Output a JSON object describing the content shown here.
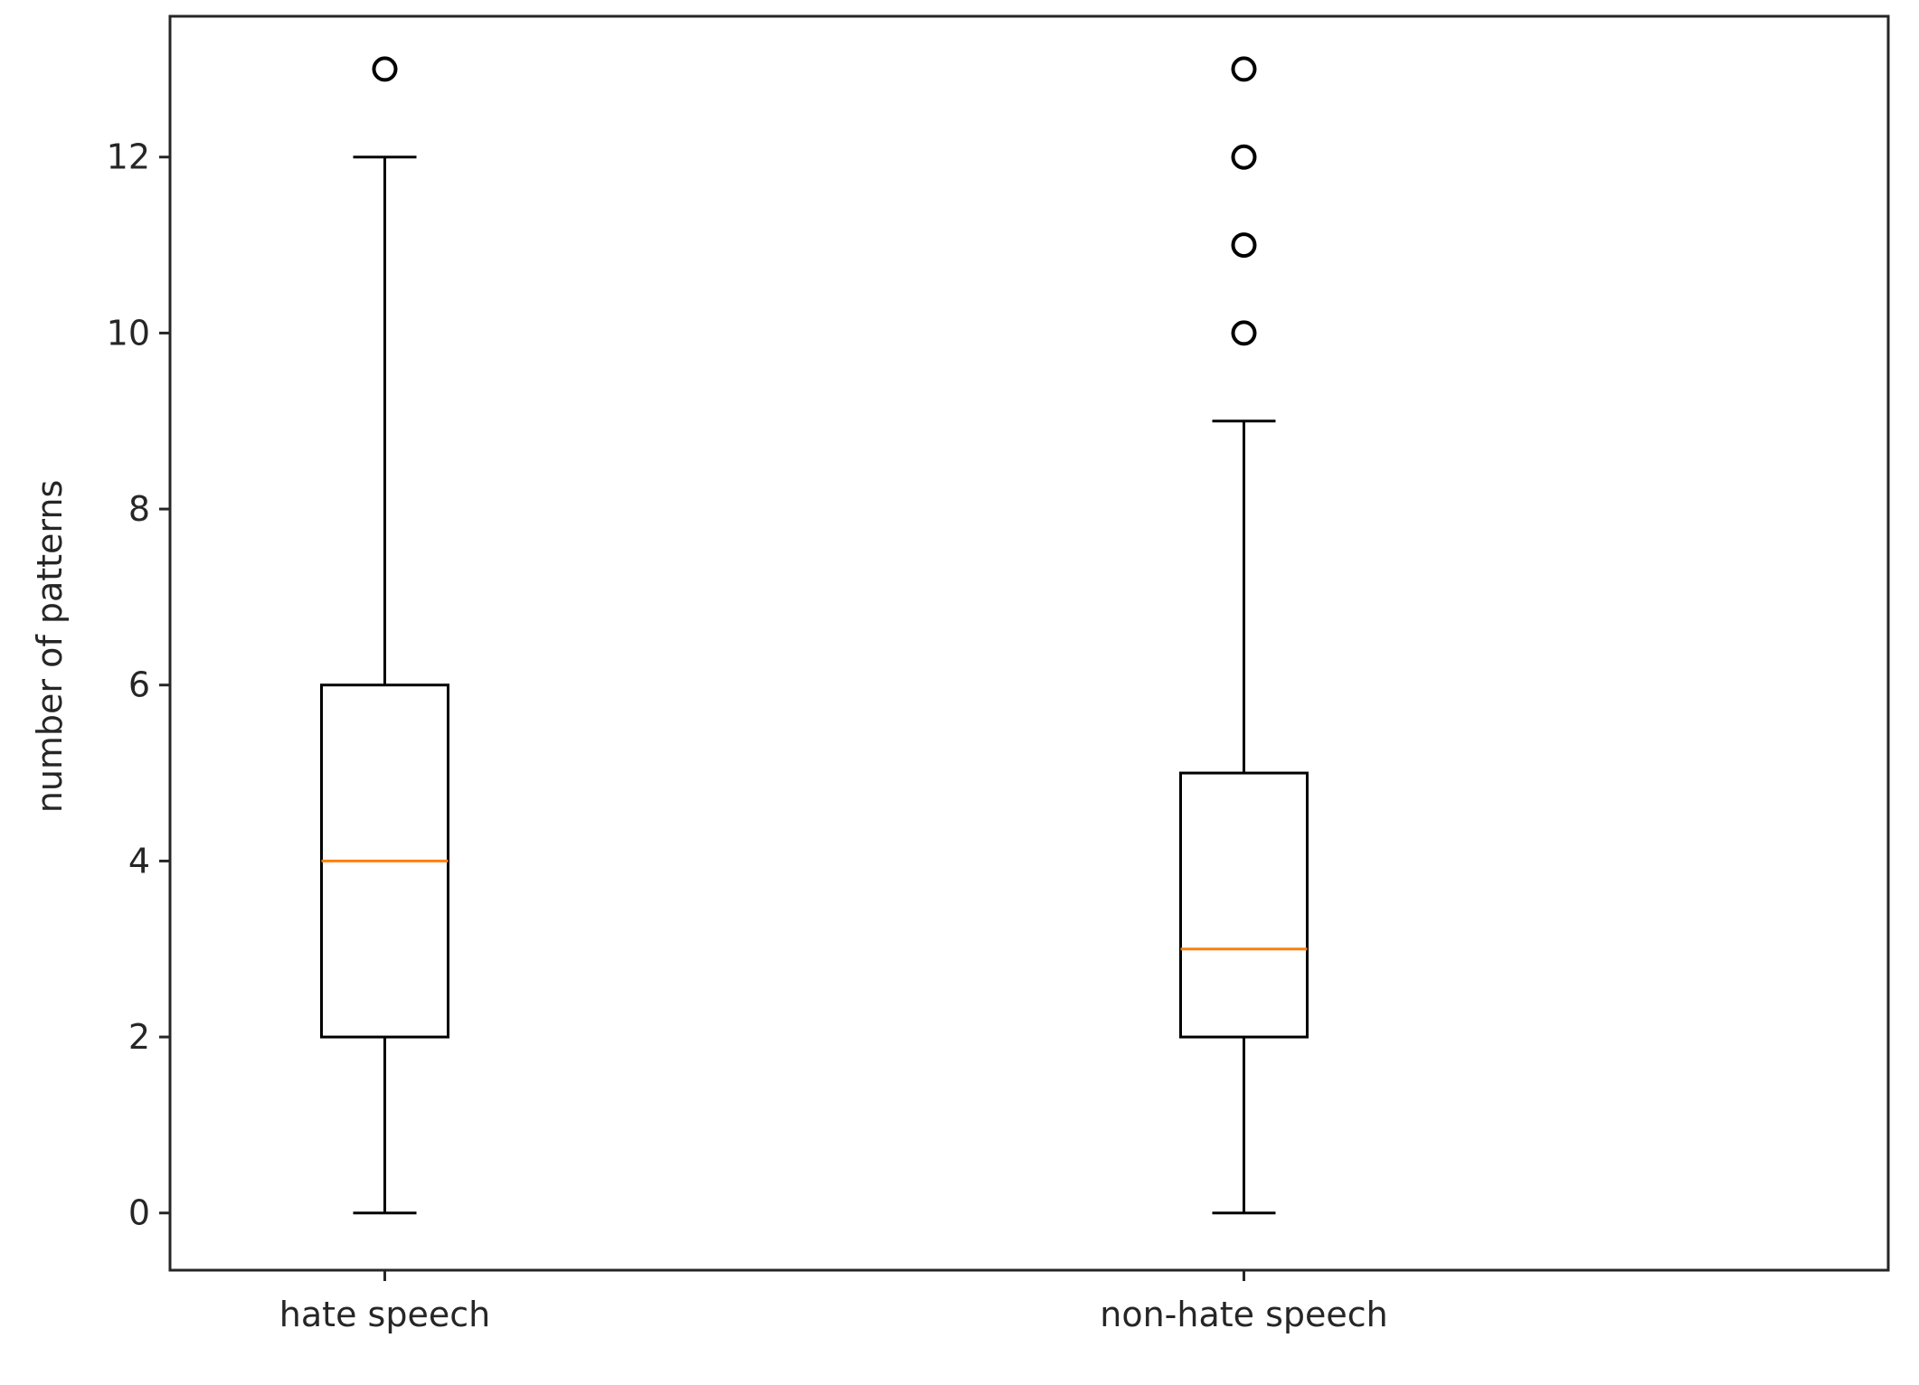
{
  "chart_data": {
    "type": "boxplot",
    "title": "",
    "xlabel": "",
    "ylabel": "number of patterns",
    "ylim": [
      -0.65,
      13.6
    ],
    "yticks": [
      "0",
      "2",
      "4",
      "6",
      "8",
      "10",
      "12"
    ],
    "grid": false,
    "legend": "none",
    "categories": [
      "hate speech",
      "non-hate speech"
    ],
    "boxes": [
      {
        "category": "hate speech",
        "whisker_low": 0,
        "q1": 2,
        "median": 4,
        "q3": 6,
        "whisker_high": 12,
        "outliers": [
          13
        ]
      },
      {
        "category": "non-hate speech",
        "whisker_low": 0,
        "q1": 2,
        "median": 3,
        "q3": 5,
        "whisker_high": 9,
        "outliers": [
          10,
          11,
          12,
          13
        ]
      }
    ],
    "colors": {
      "box": "#000000",
      "median": "#ff7f0e",
      "axes": "#262626"
    }
  }
}
